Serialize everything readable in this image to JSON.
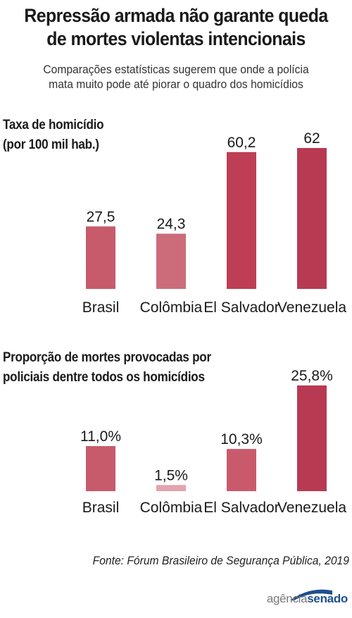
{
  "title_line1": "Repressão armada não garante queda",
  "title_line2": "de mortes violentas intencionais",
  "subtitle_line1": "Comparações estatísticas sugerem que onde a polícia",
  "subtitle_line2": "mata muito pode até piorar o quadro dos homicídios",
  "chart_data": [
    {
      "type": "bar",
      "title": "Taxa de homicídio (por 100 mil hab.)",
      "title_lines": [
        "Taxa de homicídio",
        "(por 100 mil hab.)"
      ],
      "categories": [
        "Brasil",
        "Colômbia",
        "El Salvador",
        "Venezuela"
      ],
      "values": [
        27.5,
        24.3,
        60.2,
        62
      ],
      "value_labels": [
        "27,5",
        "24,3",
        "60,2",
        "62"
      ],
      "colors": [
        "#c75a6b",
        "#cc6c7b",
        "#be3e55",
        "#b83a52"
      ],
      "ylim": [
        0,
        62
      ],
      "grid": false
    },
    {
      "type": "bar",
      "title": "Proporção de mortes provocadas por policiais dentre todos os homicídios",
      "title_lines": [
        "Proporção de mortes provocadas por",
        "policiais dentre todos os homicídios"
      ],
      "categories": [
        "Brasil",
        "Colômbia",
        "El Salvador",
        "Venezuela"
      ],
      "values": [
        11.0,
        1.5,
        10.3,
        25.8
      ],
      "value_labels": [
        "11,0%",
        "1,5%",
        "10,3%",
        "25,8%"
      ],
      "colors": [
        "#c75a6b",
        "#e3a3ae",
        "#c95a6c",
        "#b83a52"
      ],
      "ylim": [
        0,
        25.8
      ],
      "grid": false
    }
  ],
  "source": "Fonte: Fórum Brasileiro de Segurança Pública, 2019",
  "logo": {
    "part1": "agência",
    "part2": "senado"
  }
}
